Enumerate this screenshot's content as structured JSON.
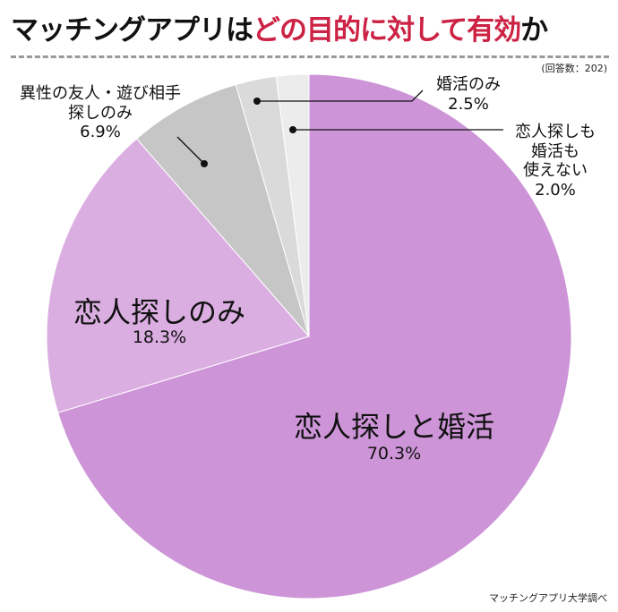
{
  "title": {
    "part1": "マッチングアプリは",
    "highlight": "どの目的に対して有効",
    "part2": "か",
    "highlight_color": "#cc2244"
  },
  "note": "(回答数：202)",
  "footer": "マッチングアプリ大学調べ",
  "chart_data": {
    "type": "pie",
    "start": "top",
    "direction": "clockwise",
    "slices": [
      {
        "label": "恋人探しと婚活",
        "value": 70.3,
        "value_label": "70.3%",
        "color": "#cd95d8"
      },
      {
        "label": "恋人探しのみ",
        "value": 18.3,
        "value_label": "18.3%",
        "color": "#dbaee2"
      },
      {
        "label_lines": [
          "異性の友人・遊び相手",
          "探しのみ"
        ],
        "value": 6.9,
        "value_label": "6.9%",
        "color": "#c6c6c6"
      },
      {
        "label": "婚活のみ",
        "value": 2.5,
        "value_label": "2.5%",
        "color": "#dadada"
      },
      {
        "label_lines": [
          "恋人探しも",
          "婚活も",
          "使えない"
        ],
        "value": 2.0,
        "value_label": "2.0%",
        "color": "#ececec"
      }
    ]
  }
}
